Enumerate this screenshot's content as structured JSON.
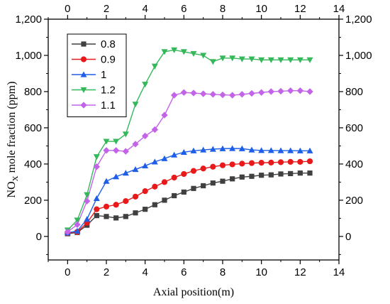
{
  "chart_data": {
    "type": "line",
    "xlabel": "Axial position(m)",
    "ylabel_main": "NO",
    "ylabel_sub": "X",
    "ylabel_rest": " mole fraction (ppm)",
    "xlim": [
      -1,
      14
    ],
    "ylim": [
      -130,
      1200
    ],
    "xticks": [
      0,
      2,
      4,
      6,
      8,
      10,
      12,
      14
    ],
    "yticks": [
      0,
      200,
      400,
      600,
      800,
      1000,
      1200
    ],
    "ytick_labels": [
      "0",
      "200",
      "400",
      "600",
      "800",
      "1,000",
      "1,200"
    ],
    "mirror_axes": true,
    "legend_position": "top-left",
    "series": [
      {
        "name": "0.8",
        "color": "#404040",
        "marker": "square",
        "points": [
          [
            0,
            15
          ],
          [
            0.5,
            22
          ],
          [
            1,
            62
          ],
          [
            1.5,
            115
          ],
          [
            2,
            110
          ],
          [
            2.5,
            102
          ],
          [
            3,
            110
          ],
          [
            3.5,
            130
          ],
          [
            4,
            150
          ],
          [
            4.5,
            175
          ],
          [
            5,
            200
          ],
          [
            5.5,
            225
          ],
          [
            6,
            245
          ],
          [
            6.5,
            265
          ],
          [
            7,
            280
          ],
          [
            7.5,
            295
          ],
          [
            8,
            305
          ],
          [
            8.5,
            318
          ],
          [
            9,
            328
          ],
          [
            9.5,
            332
          ],
          [
            10,
            338
          ],
          [
            10.5,
            340
          ],
          [
            11,
            345
          ],
          [
            11.5,
            347
          ],
          [
            12,
            350
          ],
          [
            12.5,
            350
          ]
        ]
      },
      {
        "name": "0.9",
        "color": "#e8191a",
        "marker": "circle",
        "points": [
          [
            0,
            18
          ],
          [
            0.5,
            25
          ],
          [
            1,
            75
          ],
          [
            1.5,
            150
          ],
          [
            2,
            165
          ],
          [
            2.5,
            175
          ],
          [
            3,
            195
          ],
          [
            3.5,
            220
          ],
          [
            4,
            250
          ],
          [
            4.5,
            275
          ],
          [
            5,
            300
          ],
          [
            5.5,
            325
          ],
          [
            6,
            345
          ],
          [
            6.5,
            362
          ],
          [
            7,
            375
          ],
          [
            7.5,
            385
          ],
          [
            8,
            393
          ],
          [
            8.5,
            398
          ],
          [
            9,
            402
          ],
          [
            9.5,
            405
          ],
          [
            10,
            407
          ],
          [
            10.5,
            408
          ],
          [
            11,
            410
          ],
          [
            11.5,
            412
          ],
          [
            12,
            412
          ],
          [
            12.5,
            415
          ]
        ]
      },
      {
        "name": "1",
        "color": "#1f5fe8",
        "marker": "triangle-up",
        "points": [
          [
            0,
            20
          ],
          [
            0.5,
            30
          ],
          [
            1,
            95
          ],
          [
            1.5,
            210
          ],
          [
            2,
            305
          ],
          [
            2.5,
            330
          ],
          [
            3,
            350
          ],
          [
            3.5,
            370
          ],
          [
            4,
            390
          ],
          [
            4.5,
            412
          ],
          [
            5,
            430
          ],
          [
            5.5,
            450
          ],
          [
            6,
            465
          ],
          [
            6.5,
            473
          ],
          [
            7,
            478
          ],
          [
            7.5,
            482
          ],
          [
            8,
            485
          ],
          [
            8.5,
            486
          ],
          [
            9,
            485
          ],
          [
            9.5,
            478
          ],
          [
            10,
            475
          ],
          [
            10.5,
            475
          ],
          [
            11,
            474
          ],
          [
            11.5,
            474
          ],
          [
            12,
            473
          ],
          [
            12.5,
            473
          ]
        ]
      },
      {
        "name": "1.2",
        "color": "#35b85a",
        "marker": "triangle-down",
        "points": [
          [
            0,
            35
          ],
          [
            0.5,
            90
          ],
          [
            1,
            230
          ],
          [
            1.5,
            440
          ],
          [
            2,
            525
          ],
          [
            2.5,
            525
          ],
          [
            3,
            565
          ],
          [
            3.5,
            730
          ],
          [
            4,
            840
          ],
          [
            4.5,
            940
          ],
          [
            5,
            1020
          ],
          [
            5.5,
            1030
          ],
          [
            6,
            1020
          ],
          [
            6.5,
            1010
          ],
          [
            7,
            1000
          ],
          [
            7.5,
            965
          ],
          [
            8,
            985
          ],
          [
            8.5,
            985
          ],
          [
            9,
            980
          ],
          [
            9.5,
            980
          ],
          [
            10,
            975
          ],
          [
            10.5,
            975
          ],
          [
            11,
            975
          ],
          [
            11.5,
            975
          ],
          [
            12,
            975
          ],
          [
            12.5,
            975
          ]
        ]
      },
      {
        "name": "1.1",
        "color": "#c263e8",
        "marker": "diamond",
        "points": [
          [
            0,
            25
          ],
          [
            0.5,
            65
          ],
          [
            1,
            195
          ],
          [
            1.5,
            385
          ],
          [
            2,
            475
          ],
          [
            2.5,
            475
          ],
          [
            3,
            470
          ],
          [
            3.5,
            510
          ],
          [
            4,
            555
          ],
          [
            4.5,
            590
          ],
          [
            5,
            670
          ],
          [
            5.5,
            780
          ],
          [
            6,
            795
          ],
          [
            6.5,
            792
          ],
          [
            7,
            788
          ],
          [
            7.5,
            785
          ],
          [
            8,
            782
          ],
          [
            8.5,
            780
          ],
          [
            9,
            785
          ],
          [
            9.5,
            790
          ],
          [
            10,
            795
          ],
          [
            10.5,
            800
          ],
          [
            11,
            802
          ],
          [
            11.5,
            805
          ],
          [
            12,
            805
          ],
          [
            12.5,
            800
          ]
        ]
      }
    ]
  }
}
